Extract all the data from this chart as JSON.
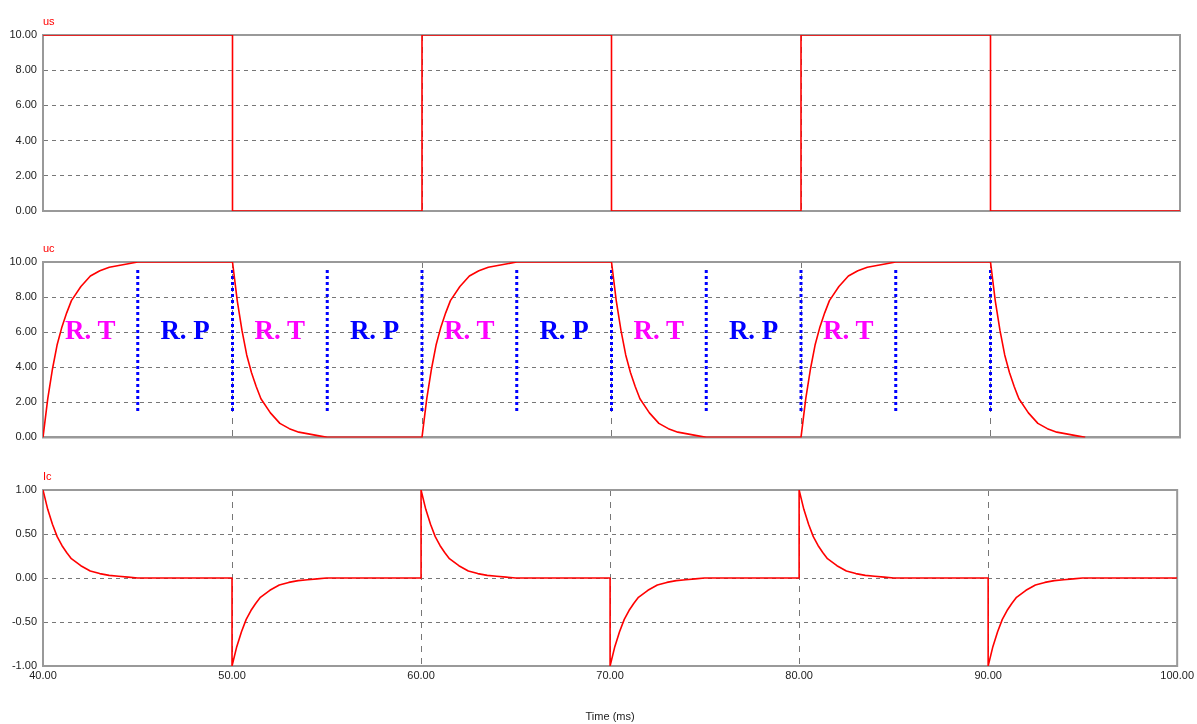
{
  "chart_data": [
    {
      "type": "line",
      "xlim": [
        40,
        100
      ],
      "xticks": [
        40,
        50,
        60,
        70,
        80,
        90,
        100
      ],
      "ylim": [
        0,
        10
      ],
      "yticks": [
        {
          "value": 0,
          "label": "0.00"
        },
        {
          "value": 2,
          "label": "2.00"
        },
        {
          "value": 4,
          "label": "4.00"
        },
        {
          "value": 6,
          "label": "6.00"
        },
        {
          "value": 8,
          "label": "8.00"
        },
        {
          "value": 10,
          "label": "10.00"
        }
      ],
      "grid": true,
      "tick_labels": "y",
      "series": [
        {
          "name": "us",
          "color": "#ff0000",
          "x": [
            40,
            50,
            50,
            60,
            60,
            70,
            70,
            80,
            80,
            90,
            90,
            100
          ],
          "values": [
            10,
            10,
            0,
            0,
            10,
            10,
            0,
            0,
            10,
            10,
            0,
            0
          ]
        }
      ]
    },
    {
      "type": "line",
      "xlim": [
        40,
        100
      ],
      "xticks": [
        40,
        50,
        60,
        70,
        80,
        90,
        100
      ],
      "ylim": [
        0,
        10
      ],
      "yticks": [
        {
          "value": 0,
          "label": "0.00"
        },
        {
          "value": 2,
          "label": "2.00"
        },
        {
          "value": 4,
          "label": "4.00"
        },
        {
          "value": 6,
          "label": "6.00"
        },
        {
          "value": 8,
          "label": "8.00"
        },
        {
          "value": 10,
          "label": "10.00"
        }
      ],
      "grid": true,
      "tick_labels": "y",
      "series": [
        {
          "name": "uc",
          "color": "#ff0000",
          "x": [
            40,
            40.25,
            40.5,
            40.75,
            41,
            41.25,
            41.5,
            42,
            42.5,
            43,
            43.5,
            44,
            44.5,
            45,
            50,
            50,
            50.25,
            50.5,
            50.75,
            51,
            51.25,
            51.5,
            52,
            52.5,
            53,
            53.5,
            54,
            54.5,
            55,
            60,
            60.25,
            60.5,
            60.75,
            61,
            61.25,
            61.5,
            62,
            62.5,
            63,
            63.5,
            64,
            64.5,
            65,
            70,
            70,
            70.25,
            70.5,
            70.75,
            71,
            71.25,
            71.5,
            72,
            72.5,
            73,
            73.5,
            74,
            74.5,
            75,
            80,
            80.25,
            80.5,
            80.75,
            81,
            81.25,
            81.5,
            82,
            82.5,
            83,
            83.5,
            84,
            84.5,
            85,
            90,
            90,
            90.25,
            90.5,
            90.75,
            91,
            91.25,
            91.5,
            92,
            92.5,
            93,
            93.5,
            94,
            94.5,
            95
          ],
          "values": [
            0,
            2.2,
            3.9,
            5.3,
            6.3,
            7.1,
            7.8,
            8.6,
            9.2,
            9.5,
            9.7,
            9.8,
            9.9,
            10,
            10,
            10,
            7.8,
            6.1,
            4.7,
            3.7,
            2.9,
            2.2,
            1.4,
            0.8,
            0.5,
            0.3,
            0.2,
            0.1,
            0,
            0,
            2.2,
            3.9,
            5.3,
            6.3,
            7.1,
            7.8,
            8.6,
            9.2,
            9.5,
            9.7,
            9.8,
            9.9,
            10,
            10,
            10,
            7.8,
            6.1,
            4.7,
            3.7,
            2.9,
            2.2,
            1.4,
            0.8,
            0.5,
            0.3,
            0.2,
            0.1,
            0,
            0,
            2.2,
            3.9,
            5.3,
            6.3,
            7.1,
            7.8,
            8.6,
            9.2,
            9.5,
            9.7,
            9.8,
            9.9,
            10,
            10,
            10,
            7.8,
            6.1,
            4.7,
            3.7,
            2.9,
            2.2,
            1.4,
            0.8,
            0.5,
            0.3,
            0.2,
            0.1,
            0
          ]
        }
      ],
      "ref_lines": [
        {
          "axis": "x",
          "value": 45,
          "color": "#0000ff",
          "line_style": "dotted"
        },
        {
          "axis": "x",
          "value": 50,
          "color": "#0000ff",
          "line_style": "dotted"
        },
        {
          "axis": "x",
          "value": 55,
          "color": "#0000ff",
          "line_style": "dotted"
        },
        {
          "axis": "x",
          "value": 60,
          "color": "#0000ff",
          "line_style": "dotted"
        },
        {
          "axis": "x",
          "value": 65,
          "color": "#0000ff",
          "line_style": "dotted"
        },
        {
          "axis": "x",
          "value": 70,
          "color": "#0000ff",
          "line_style": "dotted"
        },
        {
          "axis": "x",
          "value": 75,
          "color": "#0000ff",
          "line_style": "dotted"
        },
        {
          "axis": "x",
          "value": 80,
          "color": "#0000ff",
          "line_style": "dotted"
        },
        {
          "axis": "x",
          "value": 85,
          "color": "#0000ff",
          "line_style": "dotted"
        },
        {
          "axis": "x",
          "value": 90,
          "color": "#0000ff",
          "line_style": "dotted"
        }
      ],
      "annotations": [
        "R. T",
        "R. P",
        "R. T",
        "R. P",
        "R. T",
        "R. P",
        "R. T",
        "R. P",
        "R. T"
      ]
    },
    {
      "type": "line",
      "xlabel": "Time (ms)",
      "xlim": [
        40,
        100
      ],
      "xticks": [
        {
          "value": 40,
          "label": "40.00"
        },
        {
          "value": 50,
          "label": "50.00"
        },
        {
          "value": 60,
          "label": "60.00"
        },
        {
          "value": 70,
          "label": "70.00"
        },
        {
          "value": 80,
          "label": "80.00"
        },
        {
          "value": 90,
          "label": "90.00"
        },
        {
          "value": 100,
          "label": "100.00"
        }
      ],
      "ylim": [
        -1,
        1
      ],
      "yticks": [
        {
          "value": -1,
          "label": "-1.00"
        },
        {
          "value": -0.5,
          "label": "-0.50"
        },
        {
          "value": 0,
          "label": "0.00"
        },
        {
          "value": 0.5,
          "label": "0.50"
        },
        {
          "value": 1,
          "label": "1.00"
        }
      ],
      "grid": true,
      "series": [
        {
          "name": "Ic",
          "color": "#ff0000",
          "x": [
            40,
            40.25,
            40.5,
            40.75,
            41,
            41.25,
            41.5,
            42,
            42.5,
            43,
            43.5,
            44,
            44.5,
            45,
            50,
            50,
            50.25,
            50.5,
            50.75,
            51,
            51.25,
            51.5,
            52,
            52.5,
            53,
            53.5,
            54,
            54.5,
            55,
            60,
            60,
            60.25,
            60.5,
            60.75,
            61,
            61.25,
            61.5,
            62,
            62.5,
            63,
            63.5,
            64,
            64.5,
            65,
            70,
            70,
            70.25,
            70.5,
            70.75,
            71,
            71.25,
            71.5,
            72,
            72.5,
            73,
            73.5,
            74,
            74.5,
            75,
            80,
            80,
            80.25,
            80.5,
            80.75,
            81,
            81.25,
            81.5,
            82,
            82.5,
            83,
            83.5,
            84,
            84.5,
            85,
            90,
            90,
            90.25,
            90.5,
            90.75,
            91,
            91.25,
            91.5,
            92,
            92.5,
            93,
            93.5,
            94,
            94.5,
            95,
            100
          ],
          "values": [
            1,
            0.78,
            0.61,
            0.47,
            0.37,
            0.29,
            0.22,
            0.14,
            0.08,
            0.05,
            0.03,
            0.02,
            0.01,
            0,
            0,
            -1,
            -0.78,
            -0.61,
            -0.47,
            -0.37,
            -0.29,
            -0.22,
            -0.14,
            -0.08,
            -0.05,
            -0.03,
            -0.02,
            -0.01,
            0,
            0,
            1,
            0.78,
            0.61,
            0.47,
            0.37,
            0.29,
            0.22,
            0.14,
            0.08,
            0.05,
            0.03,
            0.02,
            0.01,
            0,
            0,
            -1,
            -0.78,
            -0.61,
            -0.47,
            -0.37,
            -0.29,
            -0.22,
            -0.14,
            -0.08,
            -0.05,
            -0.03,
            -0.02,
            -0.01,
            0,
            0,
            1,
            0.78,
            0.61,
            0.47,
            0.37,
            0.29,
            0.22,
            0.14,
            0.08,
            0.05,
            0.03,
            0.02,
            0.01,
            0,
            0,
            -1,
            -0.78,
            -0.61,
            -0.47,
            -0.37,
            -0.29,
            -0.22,
            -0.14,
            -0.08,
            -0.05,
            -0.03,
            -0.02,
            -0.01,
            0,
            0
          ]
        }
      ]
    }
  ]
}
